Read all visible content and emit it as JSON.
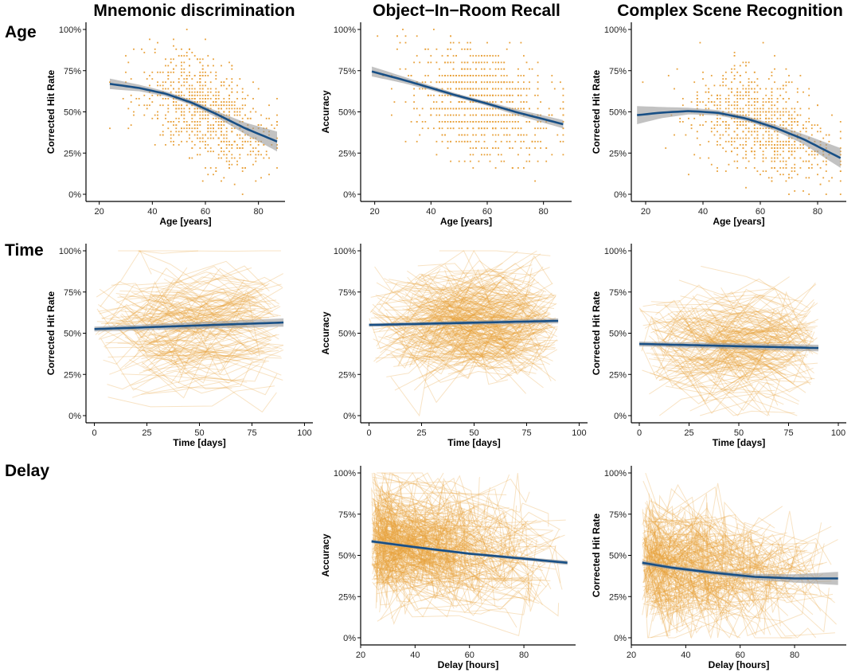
{
  "figure": {
    "column_titles": [
      "Mnemonic discrimination",
      "Object−In−Room Recall",
      "Complex Scene Recognition"
    ],
    "row_labels": [
      "Age",
      "Time",
      "Delay"
    ],
    "colors": {
      "points": "#e8a13a",
      "fit_line": "#184f85",
      "ci_band": "#9a9a9a"
    }
  },
  "chart_data": [
    {
      "id": "age-md",
      "row": 0,
      "col": 0,
      "type": "scatter",
      "title": "Mnemonic discrimination",
      "xlabel": "Age [years]",
      "ylabel": "Corrected Hit Rate",
      "xlim": [
        15,
        90
      ],
      "ylim": [
        0,
        100
      ],
      "xticks": [
        20,
        40,
        60,
        80
      ],
      "xtick_labels": [
        "20",
        "40",
        "60",
        "80"
      ],
      "yticks": [
        0,
        25,
        50,
        75,
        100
      ],
      "ytick_labels": [
        "0%",
        "25%",
        "50%",
        "75%",
        "100%"
      ],
      "points": {
        "n": 800,
        "x_range": [
          24,
          87
        ],
        "x_mean": 60,
        "x_sd": 12,
        "y_sd": 15,
        "y_min": 0,
        "y_max": 100
      },
      "fit": {
        "x": [
          24,
          35,
          45,
          55,
          65,
          75,
          87
        ],
        "y": [
          67,
          64.5,
          61,
          55.5,
          48,
          40,
          32
        ],
        "ci": [
          3.2,
          2,
          1.5,
          1.5,
          2,
          3.5,
          6
        ]
      }
    },
    {
      "id": "age-oir",
      "row": 0,
      "col": 1,
      "type": "scatter",
      "title": "Object−In−Room Recall",
      "xlabel": "Age [years]",
      "ylabel": "Accuracy",
      "xlim": [
        15,
        90
      ],
      "ylim": [
        0,
        100
      ],
      "xticks": [
        20,
        40,
        60,
        80
      ],
      "xtick_labels": [
        "20",
        "40",
        "60",
        "80"
      ],
      "yticks": [
        0,
        25,
        50,
        75,
        100
      ],
      "ytick_labels": [
        "0%",
        "25%",
        "50%",
        "75%",
        "100%"
      ],
      "points": {
        "n": 900,
        "x_range": [
          19,
          87
        ],
        "x_mean": 58,
        "x_sd": 13,
        "y_sd": 16,
        "y_min": 4,
        "y_max": 100,
        "y_step": 4
      },
      "fit": {
        "x": [
          19,
          30,
          40,
          50,
          60,
          70,
          87
        ],
        "y": [
          74.5,
          69.5,
          64.5,
          59.5,
          55,
          50,
          42.5
        ],
        "ci": [
          3,
          2,
          1.4,
          1.2,
          1.3,
          1.8,
          2.5
        ]
      }
    },
    {
      "id": "age-csr",
      "row": 0,
      "col": 2,
      "type": "scatter",
      "title": "Complex Scene Recognition",
      "xlabel": "Age [years]",
      "ylabel": "Corrected Hit Rate",
      "xlim": [
        15,
        90
      ],
      "ylim": [
        0,
        100
      ],
      "xticks": [
        20,
        40,
        60,
        80
      ],
      "xtick_labels": [
        "20",
        "40",
        "60",
        "80"
      ],
      "yticks": [
        0,
        25,
        50,
        75,
        100
      ],
      "ytick_labels": [
        "0%",
        "25%",
        "50%",
        "75%",
        "100%"
      ],
      "points": {
        "n": 850,
        "x_range": [
          17,
          88
        ],
        "x_mean": 60,
        "x_sd": 12,
        "y_sd": 15,
        "y_min": 0,
        "y_max": 92
      },
      "fit": {
        "x": [
          17,
          25,
          35,
          45,
          55,
          65,
          75,
          88
        ],
        "y": [
          48,
          49.5,
          50.5,
          49.5,
          46,
          40.5,
          33.5,
          22
        ],
        "ci": [
          5.5,
          3.5,
          2,
          1.6,
          1.5,
          1.8,
          3,
          6
        ]
      }
    },
    {
      "id": "time-md",
      "row": 1,
      "col": 0,
      "type": "line",
      "title": "Mnemonic discrimination",
      "xlabel": "Time [days]",
      "ylabel": "Corrected Hit Rate",
      "xlim": [
        -4,
        104
      ],
      "ylim": [
        0,
        100
      ],
      "xticks": [
        0,
        25,
        50,
        75,
        100
      ],
      "xtick_labels": [
        "0",
        "25",
        "50",
        "75",
        "100"
      ],
      "yticks": [
        0,
        25,
        50,
        75,
        100
      ],
      "ytick_labels": [
        "0%",
        "25%",
        "50%",
        "75%",
        "100%"
      ],
      "trajectories": {
        "n": 160,
        "x_range": [
          0,
          90
        ],
        "mean": 54,
        "sd_between": 16,
        "sd_within": 9
      },
      "fit": {
        "x": [
          0,
          90
        ],
        "y": [
          52.5,
          56.5
        ],
        "ci": [
          1.5,
          2.5
        ]
      }
    },
    {
      "id": "time-oir",
      "row": 1,
      "col": 1,
      "type": "line",
      "title": "Object−In−Room Recall",
      "xlabel": "Time [days]",
      "ylabel": "Accuracy",
      "xlim": [
        -4,
        104
      ],
      "ylim": [
        0,
        100
      ],
      "xticks": [
        0,
        25,
        50,
        75,
        100
      ],
      "xtick_labels": [
        "0",
        "25",
        "50",
        "75",
        "100"
      ],
      "yticks": [
        0,
        25,
        50,
        75,
        100
      ],
      "ytick_labels": [
        "0%",
        "25%",
        "50%",
        "75%",
        "100%"
      ],
      "trajectories": {
        "n": 260,
        "x_range": [
          0,
          90
        ],
        "mean": 56,
        "sd_between": 13,
        "sd_within": 10
      },
      "fit": {
        "x": [
          0,
          90
        ],
        "y": [
          55,
          57.5
        ],
        "ci": [
          1,
          1.5
        ]
      }
    },
    {
      "id": "time-csr",
      "row": 1,
      "col": 2,
      "type": "line",
      "title": "Complex Scene Recognition",
      "xlabel": "Time [days]",
      "ylabel": "Corrected Hit Rate",
      "xlim": [
        -4,
        104
      ],
      "ylim": [
        0,
        100
      ],
      "xticks": [
        0,
        25,
        50,
        75,
        100
      ],
      "xtick_labels": [
        "0",
        "25",
        "50",
        "75",
        "100"
      ],
      "yticks": [
        0,
        25,
        50,
        75,
        100
      ],
      "ytick_labels": [
        "0%",
        "25%",
        "50%",
        "75%",
        "100%"
      ],
      "trajectories": {
        "n": 180,
        "x_range": [
          0,
          90
        ],
        "mean": 42,
        "sd_between": 14,
        "sd_within": 10
      },
      "fit": {
        "x": [
          0,
          90
        ],
        "y": [
          43.5,
          41
        ],
        "ci": [
          1.5,
          2
        ]
      }
    },
    {
      "id": "delay-oir",
      "row": 2,
      "col": 1,
      "type": "line",
      "title": "Object−In−Room Recall",
      "xlabel": "Delay [hours]",
      "ylabel": "Accuracy",
      "xlim": [
        20,
        99
      ],
      "ylim": [
        0,
        100
      ],
      "xticks": [
        20,
        40,
        60,
        80
      ],
      "xtick_labels": [
        "20",
        "40",
        "60",
        "80"
      ],
      "yticks": [
        0,
        25,
        50,
        75,
        100
      ],
      "ytick_labels": [
        "0%",
        "25%",
        "50%",
        "75%",
        "100%"
      ],
      "trajectories": {
        "n": 300,
        "x_range": [
          24,
          96
        ],
        "mean": 52,
        "sd_between": 12,
        "sd_within": 11,
        "cluster_near": 25
      },
      "fit": {
        "x": [
          24,
          40,
          60,
          80,
          96
        ],
        "y": [
          58.5,
          55,
          51,
          48,
          45.5
        ],
        "ci": [
          1,
          0.8,
          0.8,
          1,
          1.3
        ]
      }
    },
    {
      "id": "delay-csr",
      "row": 2,
      "col": 2,
      "type": "line",
      "title": "Complex Scene Recognition",
      "xlabel": "Delay [hours]",
      "ylabel": "Corrected Hit Rate",
      "xlim": [
        20,
        99
      ],
      "ylim": [
        0,
        100
      ],
      "xticks": [
        20,
        40,
        60,
        80
      ],
      "xtick_labels": [
        "20",
        "40",
        "60",
        "80"
      ],
      "yticks": [
        0,
        25,
        50,
        75,
        100
      ],
      "ytick_labels": [
        "0%",
        "25%",
        "50%",
        "75%",
        "100%"
      ],
      "trajectories": {
        "n": 220,
        "x_range": [
          24,
          96
        ],
        "mean": 41,
        "sd_between": 13,
        "sd_within": 13,
        "cluster_near": 25
      },
      "fit": {
        "x": [
          24,
          35,
          50,
          65,
          80,
          96
        ],
        "y": [
          45.5,
          42.5,
          39.5,
          37,
          36,
          36
        ],
        "ci": [
          1.5,
          1.2,
          1.3,
          1.8,
          2.5,
          4
        ]
      }
    }
  ]
}
